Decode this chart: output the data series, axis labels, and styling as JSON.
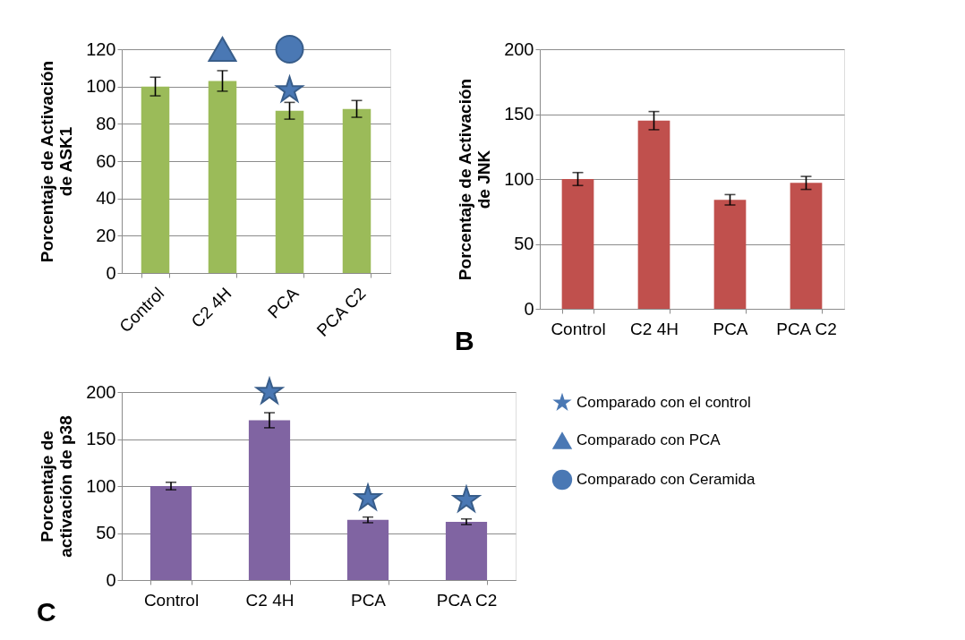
{
  "chart_data": [
    {
      "type": "bar",
      "ylabel": "Porcentaje de Activación\nde ASK1",
      "categories": [
        "Control",
        "C2 4H",
        "PCA",
        "PCA C2"
      ],
      "ylim": [
        0,
        120
      ],
      "yticks": [
        0,
        20,
        40,
        60,
        80,
        100,
        120
      ],
      "grid": "y",
      "legend": "bottom right",
      "series": [
        {
          "color": "#9bbb59",
          "values": [
            100,
            103,
            87,
            88
          ],
          "errors": [
            5,
            5.5,
            4.5,
            4.5
          ]
        },
        {
          "type": "scatter",
          "name": "Comparado con el control",
          "marker": "star",
          "color": "#4a78b4",
          "x": [
            "PCA"
          ],
          "values": [
            98
          ]
        },
        {
          "type": "scatter",
          "name": "Comparado con PCA",
          "marker": "triangle",
          "color": "#4a78b4",
          "x": [
            "C2 4H"
          ],
          "values": [
            120
          ]
        },
        {
          "type": "scatter",
          "name": "Comparado con Ceramida",
          "marker": "circle",
          "color": "#4a78b4",
          "x": [
            "PCA"
          ],
          "values": [
            120
          ]
        }
      ]
    },
    {
      "type": "bar",
      "ylabel": "Porcentaje de Activación\nde JNK",
      "categories": [
        "Control",
        "C2 4H",
        "PCA",
        "PCA C2"
      ],
      "ylim": [
        0,
        200
      ],
      "yticks": [
        0,
        50,
        100,
        150,
        200
      ],
      "grid": "y",
      "legend": false,
      "annotations": [
        "B"
      ],
      "series": [
        {
          "color": "#c0504d",
          "values": [
            100,
            145,
            84,
            97
          ],
          "errors": [
            5,
            7,
            4,
            5
          ]
        }
      ]
    },
    {
      "type": "bar",
      "ylabel": "Porcentaje de\nactivación de p38",
      "categories": [
        "Control",
        "C2 4H",
        "PCA",
        "PCA C2"
      ],
      "ylim": [
        0,
        200
      ],
      "yticks": [
        0,
        50,
        100,
        150,
        200
      ],
      "grid": "y",
      "legend": false,
      "annotations": [
        "C"
      ],
      "series": [
        {
          "color": "#8064a2",
          "values": [
            100,
            170,
            64,
            62
          ],
          "errors": [
            4,
            8,
            3,
            3
          ]
        },
        {
          "type": "scatter",
          "name": "Comparado con el control",
          "marker": "star",
          "color": "#4a78b4",
          "x": [
            "C2 4H",
            "PCA",
            "PCA C2"
          ],
          "values": [
            200,
            87,
            85
          ]
        }
      ]
    }
  ]
}
